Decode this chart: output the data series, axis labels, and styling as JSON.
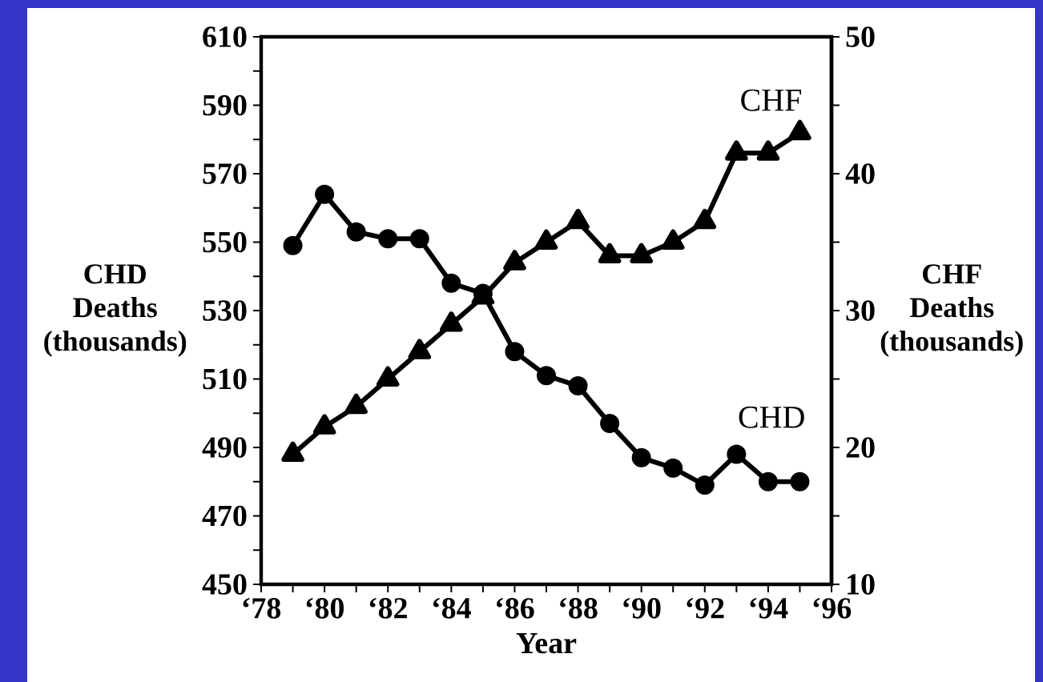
{
  "chart_data": {
    "type": "line",
    "xlabel": "Year",
    "ylabel": "CHD Deaths (thousands)",
    "y2label": "CHF Deaths (thousands)",
    "categories": [
      "‘78",
      null,
      "‘80",
      null,
      "‘82",
      null,
      "‘84",
      null,
      "‘86",
      null,
      "‘88",
      null,
      "‘90",
      null,
      "‘92",
      null,
      "‘94",
      null,
      "‘96"
    ],
    "series": [
      {
        "name": "CHD",
        "color": "#000000",
        "marker": "circle",
        "values": [
          null,
          549,
          564,
          553,
          551,
          551,
          538,
          535,
          518,
          511,
          508,
          497,
          487,
          484,
          479,
          488,
          480,
          480,
          null
        ]
      },
      {
        "name": "CHF",
        "color": "#000000",
        "marker": "triangle",
        "axis": "y2",
        "values": [
          null,
          19.5,
          21.5,
          23,
          25,
          27,
          29,
          31,
          33.5,
          35,
          36.5,
          34,
          34,
          35,
          36.5,
          41.5,
          41.5,
          43,
          null
        ]
      }
    ],
    "ylim": [
      450,
      610
    ],
    "yticks": [
      450,
      {
        "value": 460,
        "label": null
      },
      470,
      {
        "value": 480,
        "label": null
      },
      490,
      {
        "value": 500,
        "label": null
      },
      510,
      {
        "value": 520,
        "label": null
      },
      530,
      {
        "value": 540,
        "label": null
      },
      550,
      {
        "value": 560,
        "label": null
      },
      570,
      {
        "value": 580,
        "label": null
      },
      590,
      {
        "value": 600,
        "label": null
      },
      610
    ],
    "y2lim": [
      10,
      50
    ],
    "y2ticks": [
      10,
      {
        "value": 15,
        "label": null
      },
      20,
      {
        "value": 25,
        "label": null
      },
      30,
      {
        "value": 35,
        "label": null
      },
      40,
      {
        "value": 45,
        "label": null
      },
      50
    ],
    "line_style": "solid"
  }
}
